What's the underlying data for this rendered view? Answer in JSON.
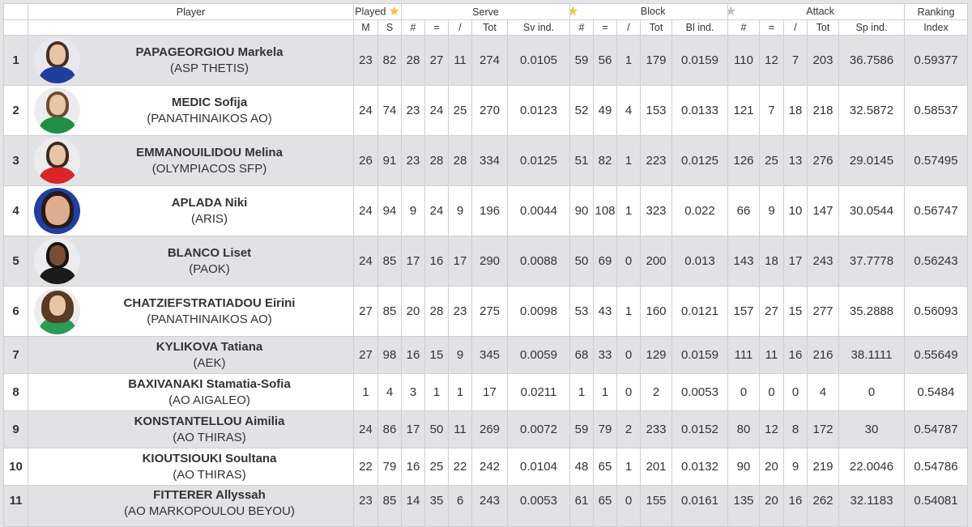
{
  "header": {
    "player": "Player",
    "played": "Played",
    "serve": "Serve",
    "block": "Block",
    "attack": "Attack",
    "ranking": "Ranking",
    "played_subs": [
      "M",
      "S"
    ],
    "serve_subs": [
      "#",
      "=",
      "/",
      "Tot",
      "Sv ind."
    ],
    "block_subs": [
      "#",
      "=",
      "/",
      "Tot",
      "Bl ind."
    ],
    "attack_subs": [
      "#",
      "=",
      "/",
      "Tot",
      "Sp ind."
    ],
    "ranking_sub": "Index",
    "star_icons": {
      "serve": "star-gold",
      "block": "star-gold",
      "attack": "star-silver"
    }
  },
  "colors": {
    "row_alt": "#e2e2e5",
    "row": "#ffffff",
    "border": "#cfcfd3",
    "star_gold": "#f5c431",
    "star_silver": "#b9bcc2"
  },
  "rows": [
    {
      "rank": "1",
      "name": "PAPAGEORGIOU Markela",
      "team": "(ASP THETIS)",
      "photo": "avatar-blue-jersey",
      "m": "23",
      "s": "82",
      "sv_hash": "28",
      "sv_eq": "27",
      "sv_sl": "11",
      "sv_tot": "274",
      "sv_ind": "0.0105",
      "bl_hash": "59",
      "bl_eq": "56",
      "bl_sl": "1",
      "bl_tot": "179",
      "bl_ind": "0.0159",
      "at_hash": "110",
      "at_eq": "12",
      "at_sl": "7",
      "at_tot": "203",
      "sp_ind": "36.7586",
      "index": "0.59377"
    },
    {
      "rank": "2",
      "name": "MEDIC Sofija",
      "team": "(PANATHINAIKOS AO)",
      "photo": "avatar-green-jersey",
      "m": "24",
      "s": "74",
      "sv_hash": "23",
      "sv_eq": "24",
      "sv_sl": "25",
      "sv_tot": "270",
      "sv_ind": "0.0123",
      "bl_hash": "52",
      "bl_eq": "49",
      "bl_sl": "4",
      "bl_tot": "153",
      "bl_ind": "0.0133",
      "at_hash": "121",
      "at_eq": "7",
      "at_sl": "18",
      "at_tot": "218",
      "sp_ind": "32.5872",
      "index": "0.58537"
    },
    {
      "rank": "3",
      "name": "EMMANOUILIDOU Melina",
      "team": "(OLYMPIACOS SFP)",
      "photo": "avatar-red-jersey",
      "m": "26",
      "s": "91",
      "sv_hash": "23",
      "sv_eq": "28",
      "sv_sl": "28",
      "sv_tot": "334",
      "sv_ind": "0.0125",
      "bl_hash": "51",
      "bl_eq": "82",
      "bl_sl": "1",
      "bl_tot": "223",
      "bl_ind": "0.0125",
      "at_hash": "126",
      "at_eq": "25",
      "at_sl": "13",
      "at_tot": "276",
      "sp_ind": "29.0145",
      "index": "0.57495"
    },
    {
      "rank": "4",
      "name": "APLADA Niki",
      "team": "(ARIS)",
      "photo": "avatar-navy-background",
      "m": "24",
      "s": "94",
      "sv_hash": "9",
      "sv_eq": "24",
      "sv_sl": "9",
      "sv_tot": "196",
      "sv_ind": "0.0044",
      "bl_hash": "90",
      "bl_eq": "108",
      "bl_sl": "1",
      "bl_tot": "323",
      "bl_ind": "0.022",
      "at_hash": "66",
      "at_eq": "9",
      "at_sl": "10",
      "at_tot": "147",
      "sp_ind": "30.0544",
      "index": "0.56747"
    },
    {
      "rank": "5",
      "name": "BLANCO Liset",
      "team": "(PAOK)",
      "photo": "avatar-black-jersey",
      "m": "24",
      "s": "85",
      "sv_hash": "17",
      "sv_eq": "16",
      "sv_sl": "17",
      "sv_tot": "290",
      "sv_ind": "0.0088",
      "bl_hash": "50",
      "bl_eq": "69",
      "bl_sl": "0",
      "bl_tot": "200",
      "bl_ind": "0.013",
      "at_hash": "143",
      "at_eq": "18",
      "at_sl": "17",
      "at_tot": "243",
      "sp_ind": "37.7778",
      "index": "0.56243"
    },
    {
      "rank": "6",
      "name": "CHATZIEFSTRATIADOU Eirini",
      "team": "(PANATHINAIKOS AO)",
      "photo": "avatar-green-curly",
      "m": "27",
      "s": "85",
      "sv_hash": "20",
      "sv_eq": "28",
      "sv_sl": "23",
      "sv_tot": "275",
      "sv_ind": "0.0098",
      "bl_hash": "53",
      "bl_eq": "43",
      "bl_sl": "1",
      "bl_tot": "160",
      "bl_ind": "0.0121",
      "at_hash": "157",
      "at_eq": "27",
      "at_sl": "15",
      "at_tot": "277",
      "sp_ind": "35.2888",
      "index": "0.56093"
    },
    {
      "rank": "7",
      "name": "KYLIKOVA Tatiana",
      "team": "(AEK)",
      "photo": "",
      "m": "27",
      "s": "98",
      "sv_hash": "16",
      "sv_eq": "15",
      "sv_sl": "9",
      "sv_tot": "345",
      "sv_ind": "0.0059",
      "bl_hash": "68",
      "bl_eq": "33",
      "bl_sl": "0",
      "bl_tot": "129",
      "bl_ind": "0.0159",
      "at_hash": "111",
      "at_eq": "11",
      "at_sl": "16",
      "at_tot": "216",
      "sp_ind": "38.1111",
      "index": "0.55649"
    },
    {
      "rank": "8",
      "name": "BAXIVANAKI Stamatia-Sofia",
      "team": "(AO AIGALEO)",
      "photo": "",
      "m": "1",
      "s": "4",
      "sv_hash": "3",
      "sv_eq": "1",
      "sv_sl": "1",
      "sv_tot": "17",
      "sv_ind": "0.0211",
      "bl_hash": "1",
      "bl_eq": "1",
      "bl_sl": "0",
      "bl_tot": "2",
      "bl_ind": "0.0053",
      "at_hash": "0",
      "at_eq": "0",
      "at_sl": "0",
      "at_tot": "4",
      "sp_ind": "0",
      "index": "0.5484"
    },
    {
      "rank": "9",
      "name": "KONSTANTELLOU Aimilia",
      "team": "(AO THIRAS)",
      "photo": "",
      "m": "24",
      "s": "86",
      "sv_hash": "17",
      "sv_eq": "50",
      "sv_sl": "11",
      "sv_tot": "269",
      "sv_ind": "0.0072",
      "bl_hash": "59",
      "bl_eq": "79",
      "bl_sl": "2",
      "bl_tot": "233",
      "bl_ind": "0.0152",
      "at_hash": "80",
      "at_eq": "12",
      "at_sl": "8",
      "at_tot": "172",
      "sp_ind": "30",
      "index": "0.54787"
    },
    {
      "rank": "10",
      "name": "KIOUTSIOUKI Soultana",
      "team": "(AO THIRAS)",
      "photo": "",
      "m": "22",
      "s": "79",
      "sv_hash": "16",
      "sv_eq": "25",
      "sv_sl": "22",
      "sv_tot": "242",
      "sv_ind": "0.0104",
      "bl_hash": "48",
      "bl_eq": "65",
      "bl_sl": "1",
      "bl_tot": "201",
      "bl_ind": "0.0132",
      "at_hash": "90",
      "at_eq": "20",
      "at_sl": "9",
      "at_tot": "219",
      "sp_ind": "22.0046",
      "index": "0.54786"
    },
    {
      "rank": "11",
      "name": "FITTERER Allyssah",
      "team": "(AO MARKOPOULOU BEYOU)",
      "photo": "",
      "m": "23",
      "s": "85",
      "sv_hash": "14",
      "sv_eq": "35",
      "sv_sl": "6",
      "sv_tot": "243",
      "sv_ind": "0.0053",
      "bl_hash": "61",
      "bl_eq": "65",
      "bl_sl": "0",
      "bl_tot": "155",
      "bl_ind": "0.0161",
      "at_hash": "135",
      "at_eq": "20",
      "at_sl": "16",
      "at_tot": "262",
      "sp_ind": "32.1183",
      "index": "0.54081"
    }
  ]
}
